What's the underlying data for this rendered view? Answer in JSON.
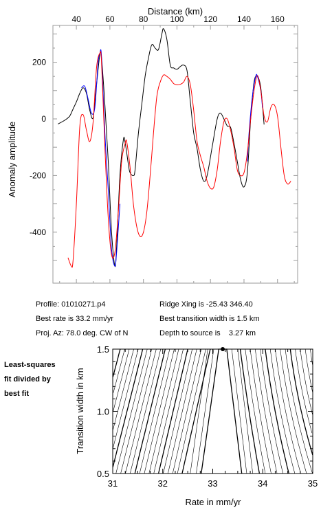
{
  "chart_data": [
    {
      "type": "line",
      "xlabel": "Distance (km)",
      "ylabel": "Anomaly amplitude",
      "xlim": [
        26,
        172
      ],
      "ylim": [
        -580,
        330
      ],
      "xticks": [
        40,
        60,
        80,
        100,
        120,
        140,
        160
      ],
      "yticks": [
        -400,
        -200,
        0,
        200
      ],
      "series": [
        {
          "color": "#000000",
          "points": [
            [
              29,
              -18
            ],
            [
              33,
              -5
            ],
            [
              36,
              10
            ],
            [
              38,
              35
            ],
            [
              40,
              60
            ],
            [
              42,
              90
            ],
            [
              44,
              110
            ],
            [
              46,
              90
            ],
            [
              48,
              30
            ],
            [
              50,
              5
            ],
            [
              52,
              120
            ],
            [
              54,
              228
            ],
            [
              55,
              215
            ],
            [
              57,
              50
            ],
            [
              59,
              -150
            ],
            [
              61,
              -400
            ],
            [
              63,
              -520
            ],
            [
              64,
              -450
            ],
            [
              66,
              -200
            ],
            [
              68,
              -75
            ],
            [
              69,
              -80
            ],
            [
              71,
              -160
            ],
            [
              72,
              -190
            ],
            [
              74,
              -200
            ],
            [
              75,
              -180
            ],
            [
              77,
              -50
            ],
            [
              79,
              50
            ],
            [
              81,
              150
            ],
            [
              83,
              215
            ],
            [
              85,
              262
            ],
            [
              87,
              250
            ],
            [
              89,
              245
            ],
            [
              91,
              300
            ],
            [
              92,
              318
            ],
            [
              94,
              280
            ],
            [
              96,
              190
            ],
            [
              98,
              180
            ],
            [
              100,
              175
            ],
            [
              102,
              185
            ],
            [
              104,
              190
            ],
            [
              106,
              170
            ],
            [
              108,
              60
            ],
            [
              110,
              -50
            ],
            [
              112,
              -105
            ],
            [
              114,
              -180
            ],
            [
              116,
              -220
            ],
            [
              118,
              -200
            ],
            [
              121,
              -100
            ],
            [
              124,
              0
            ],
            [
              126,
              20
            ],
            [
              128,
              0
            ],
            [
              130,
              -25
            ],
            [
              132,
              -30
            ],
            [
              134,
              -85
            ],
            [
              136,
              -150
            ],
            [
              138,
              -215
            ],
            [
              140,
              -240
            ],
            [
              142,
              -190
            ],
            [
              144,
              0
            ],
            [
              146,
              130
            ],
            [
              148,
              150
            ],
            [
              150,
              110
            ],
            [
              152,
              -20
            ]
          ]
        },
        {
          "color": "#0000ff",
          "points": [
            [
              43,
              110
            ],
            [
              45,
              115
            ],
            [
              47,
              70
            ],
            [
              49,
              20
            ],
            [
              51,
              40
            ],
            [
              53,
              200
            ],
            [
              54,
              230
            ],
            [
              55,
              220
            ],
            [
              57,
              -50
            ],
            [
              59,
              -250
            ],
            [
              61,
              -460
            ],
            [
              63,
              -520
            ],
            [
              64,
              -470
            ],
            [
              66,
              -300
            ]
          ]
        },
        {
          "color": "#0000ff",
          "points": [
            [
              142,
              -150
            ],
            [
              143,
              -50
            ],
            [
              145,
              80
            ],
            [
              147,
              150
            ],
            [
              148,
              150
            ],
            [
              150,
              100
            ],
            [
              151,
              40
            ]
          ]
        },
        {
          "color": "#ff0000",
          "points": [
            [
              35,
              -490
            ],
            [
              37,
              -520
            ],
            [
              38,
              -500
            ],
            [
              40,
              -300
            ],
            [
              42,
              -30
            ],
            [
              44,
              15
            ],
            [
              46,
              -40
            ],
            [
              48,
              -80
            ],
            [
              50,
              -10
            ],
            [
              52,
              180
            ],
            [
              54,
              232
            ],
            [
              55,
              200
            ],
            [
              57,
              -100
            ],
            [
              59,
              -350
            ],
            [
              61,
              -480
            ],
            [
              63,
              -470
            ],
            [
              65,
              -330
            ],
            [
              67,
              -150
            ],
            [
              69,
              -90
            ],
            [
              70,
              -80
            ],
            [
              72,
              -170
            ],
            [
              74,
              -300
            ],
            [
              76,
              -380
            ],
            [
              78,
              -415
            ],
            [
              80,
              -400
            ],
            [
              82,
              -330
            ],
            [
              84,
              -200
            ],
            [
              86,
              -50
            ],
            [
              88,
              80
            ],
            [
              90,
              130
            ],
            [
              92,
              155
            ],
            [
              94,
              150
            ],
            [
              96,
              140
            ],
            [
              98,
              125
            ],
            [
              100,
              120
            ],
            [
              102,
              122
            ],
            [
              104,
              130
            ],
            [
              106,
              150
            ],
            [
              108,
              120
            ],
            [
              110,
              30
            ],
            [
              112,
              -80
            ],
            [
              114,
              -130
            ],
            [
              116,
              -170
            ],
            [
              118,
              -220
            ],
            [
              120,
              -245
            ],
            [
              122,
              -240
            ],
            [
              124,
              -180
            ],
            [
              126,
              -80
            ],
            [
              128,
              -10
            ],
            [
              130,
              0
            ],
            [
              132,
              -40
            ],
            [
              134,
              -100
            ],
            [
              136,
              -180
            ],
            [
              138,
              -200
            ],
            [
              140,
              -190
            ],
            [
              142,
              -120
            ],
            [
              144,
              0
            ],
            [
              146,
              100
            ],
            [
              148,
              153
            ],
            [
              150,
              100
            ],
            [
              152,
              10
            ],
            [
              154,
              -10
            ],
            [
              156,
              40
            ],
            [
              158,
              50
            ],
            [
              160,
              10
            ],
            [
              162,
              -100
            ],
            [
              164,
              -200
            ],
            [
              166,
              -230
            ],
            [
              168,
              -220
            ]
          ]
        }
      ]
    },
    {
      "type": "contour",
      "xlabel": "Rate in mm/yr",
      "ylabel": "Transition width in km",
      "xlim": [
        31,
        35
      ],
      "ylim": [
        0.5,
        1.5
      ],
      "xticks": [
        31,
        32,
        33,
        34,
        35
      ],
      "yticks": [
        0.5,
        1.0,
        1.5
      ],
      "best_fit": {
        "rate": 33.2,
        "width": 1.5
      }
    }
  ],
  "info": {
    "profile": "Profile: 01010271.p4",
    "best_rate": "Best rate is 33.2 mm/yr",
    "proj_az": "Proj. Az: 78.0 deg. CW of N",
    "ridge_xing": "Ridge Xing is -25.43 346.40",
    "best_width": "Best transition width is 1.5 km",
    "depth": "Depth to source is    3.27 km"
  },
  "side_label": [
    "Least-squares",
    "fit divided by",
    "best fit"
  ]
}
